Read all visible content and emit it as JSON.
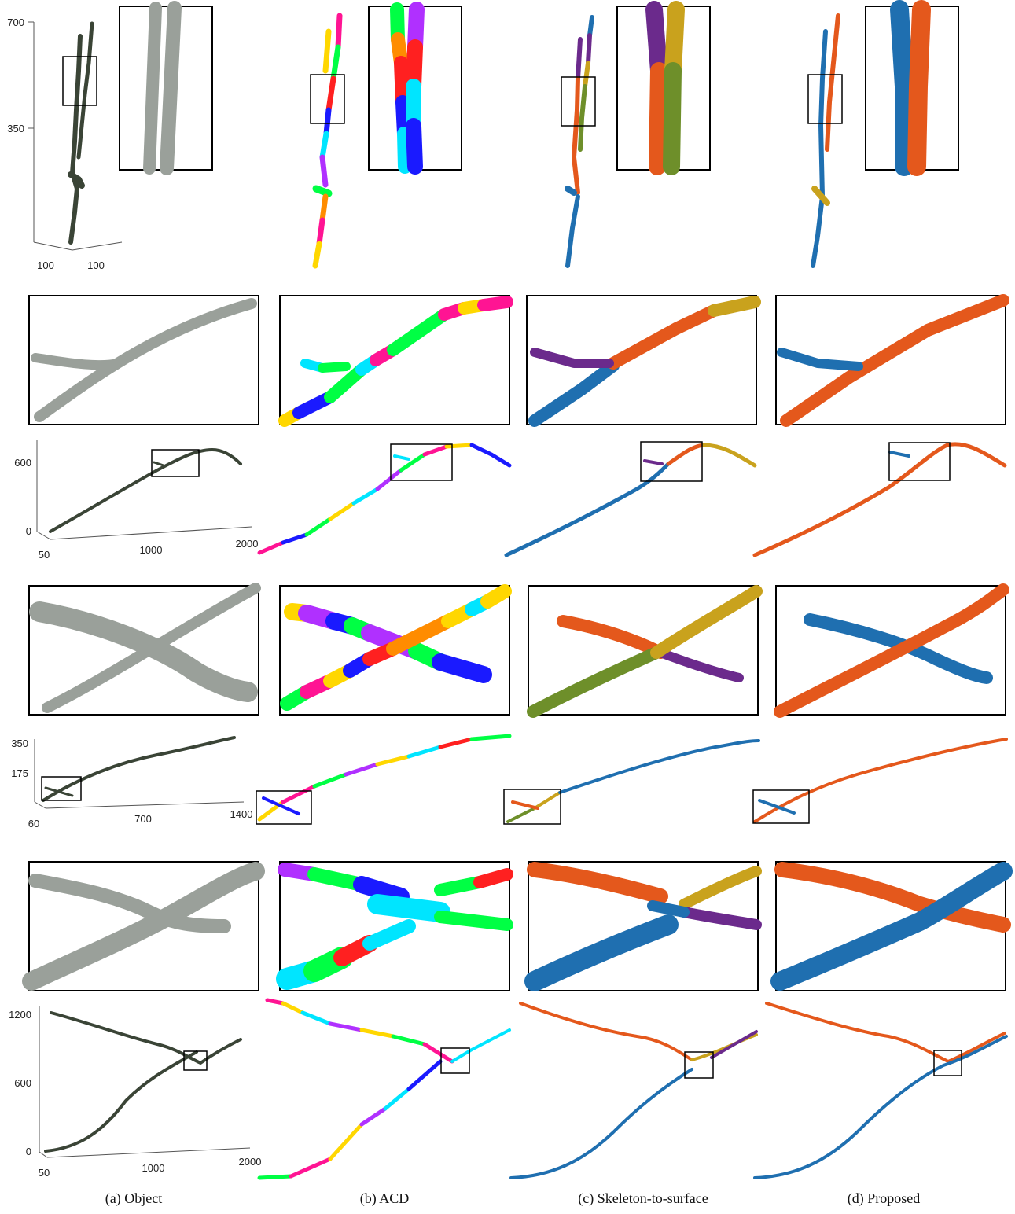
{
  "figure": {
    "captions": [
      "(a) Object",
      "(b) ACD",
      "(c) Skeleton-to-surface",
      "(d) Proposed"
    ],
    "row1": {
      "y_ticks": [
        "700",
        "350"
      ],
      "x_ticks": [
        "100",
        "100"
      ]
    },
    "row2": {
      "y_ticks": [
        "600",
        "0"
      ],
      "x_ticks": [
        "50",
        "1000",
        "2000"
      ]
    },
    "row3": {
      "y_ticks": [
        "350",
        "175"
      ],
      "x_ticks": [
        "60",
        "700",
        "1400"
      ]
    },
    "row4": {
      "y_ticks": [
        "1200",
        "600",
        "0"
      ],
      "x_ticks": [
        "50",
        "1000",
        "2000"
      ]
    }
  },
  "colors": {
    "object": "#3a4436",
    "blue": "#1f6fb0",
    "orange": "#e4581c",
    "purple": "#6b2a8c",
    "olive": "#6e8f2a",
    "gold": "#c9a21d",
    "acd_palette": [
      "#ff1493",
      "#ffd700",
      "#00e5ff",
      "#00ff44",
      "#1a1aff",
      "#ff2020",
      "#ff8c00",
      "#b030ff"
    ]
  }
}
